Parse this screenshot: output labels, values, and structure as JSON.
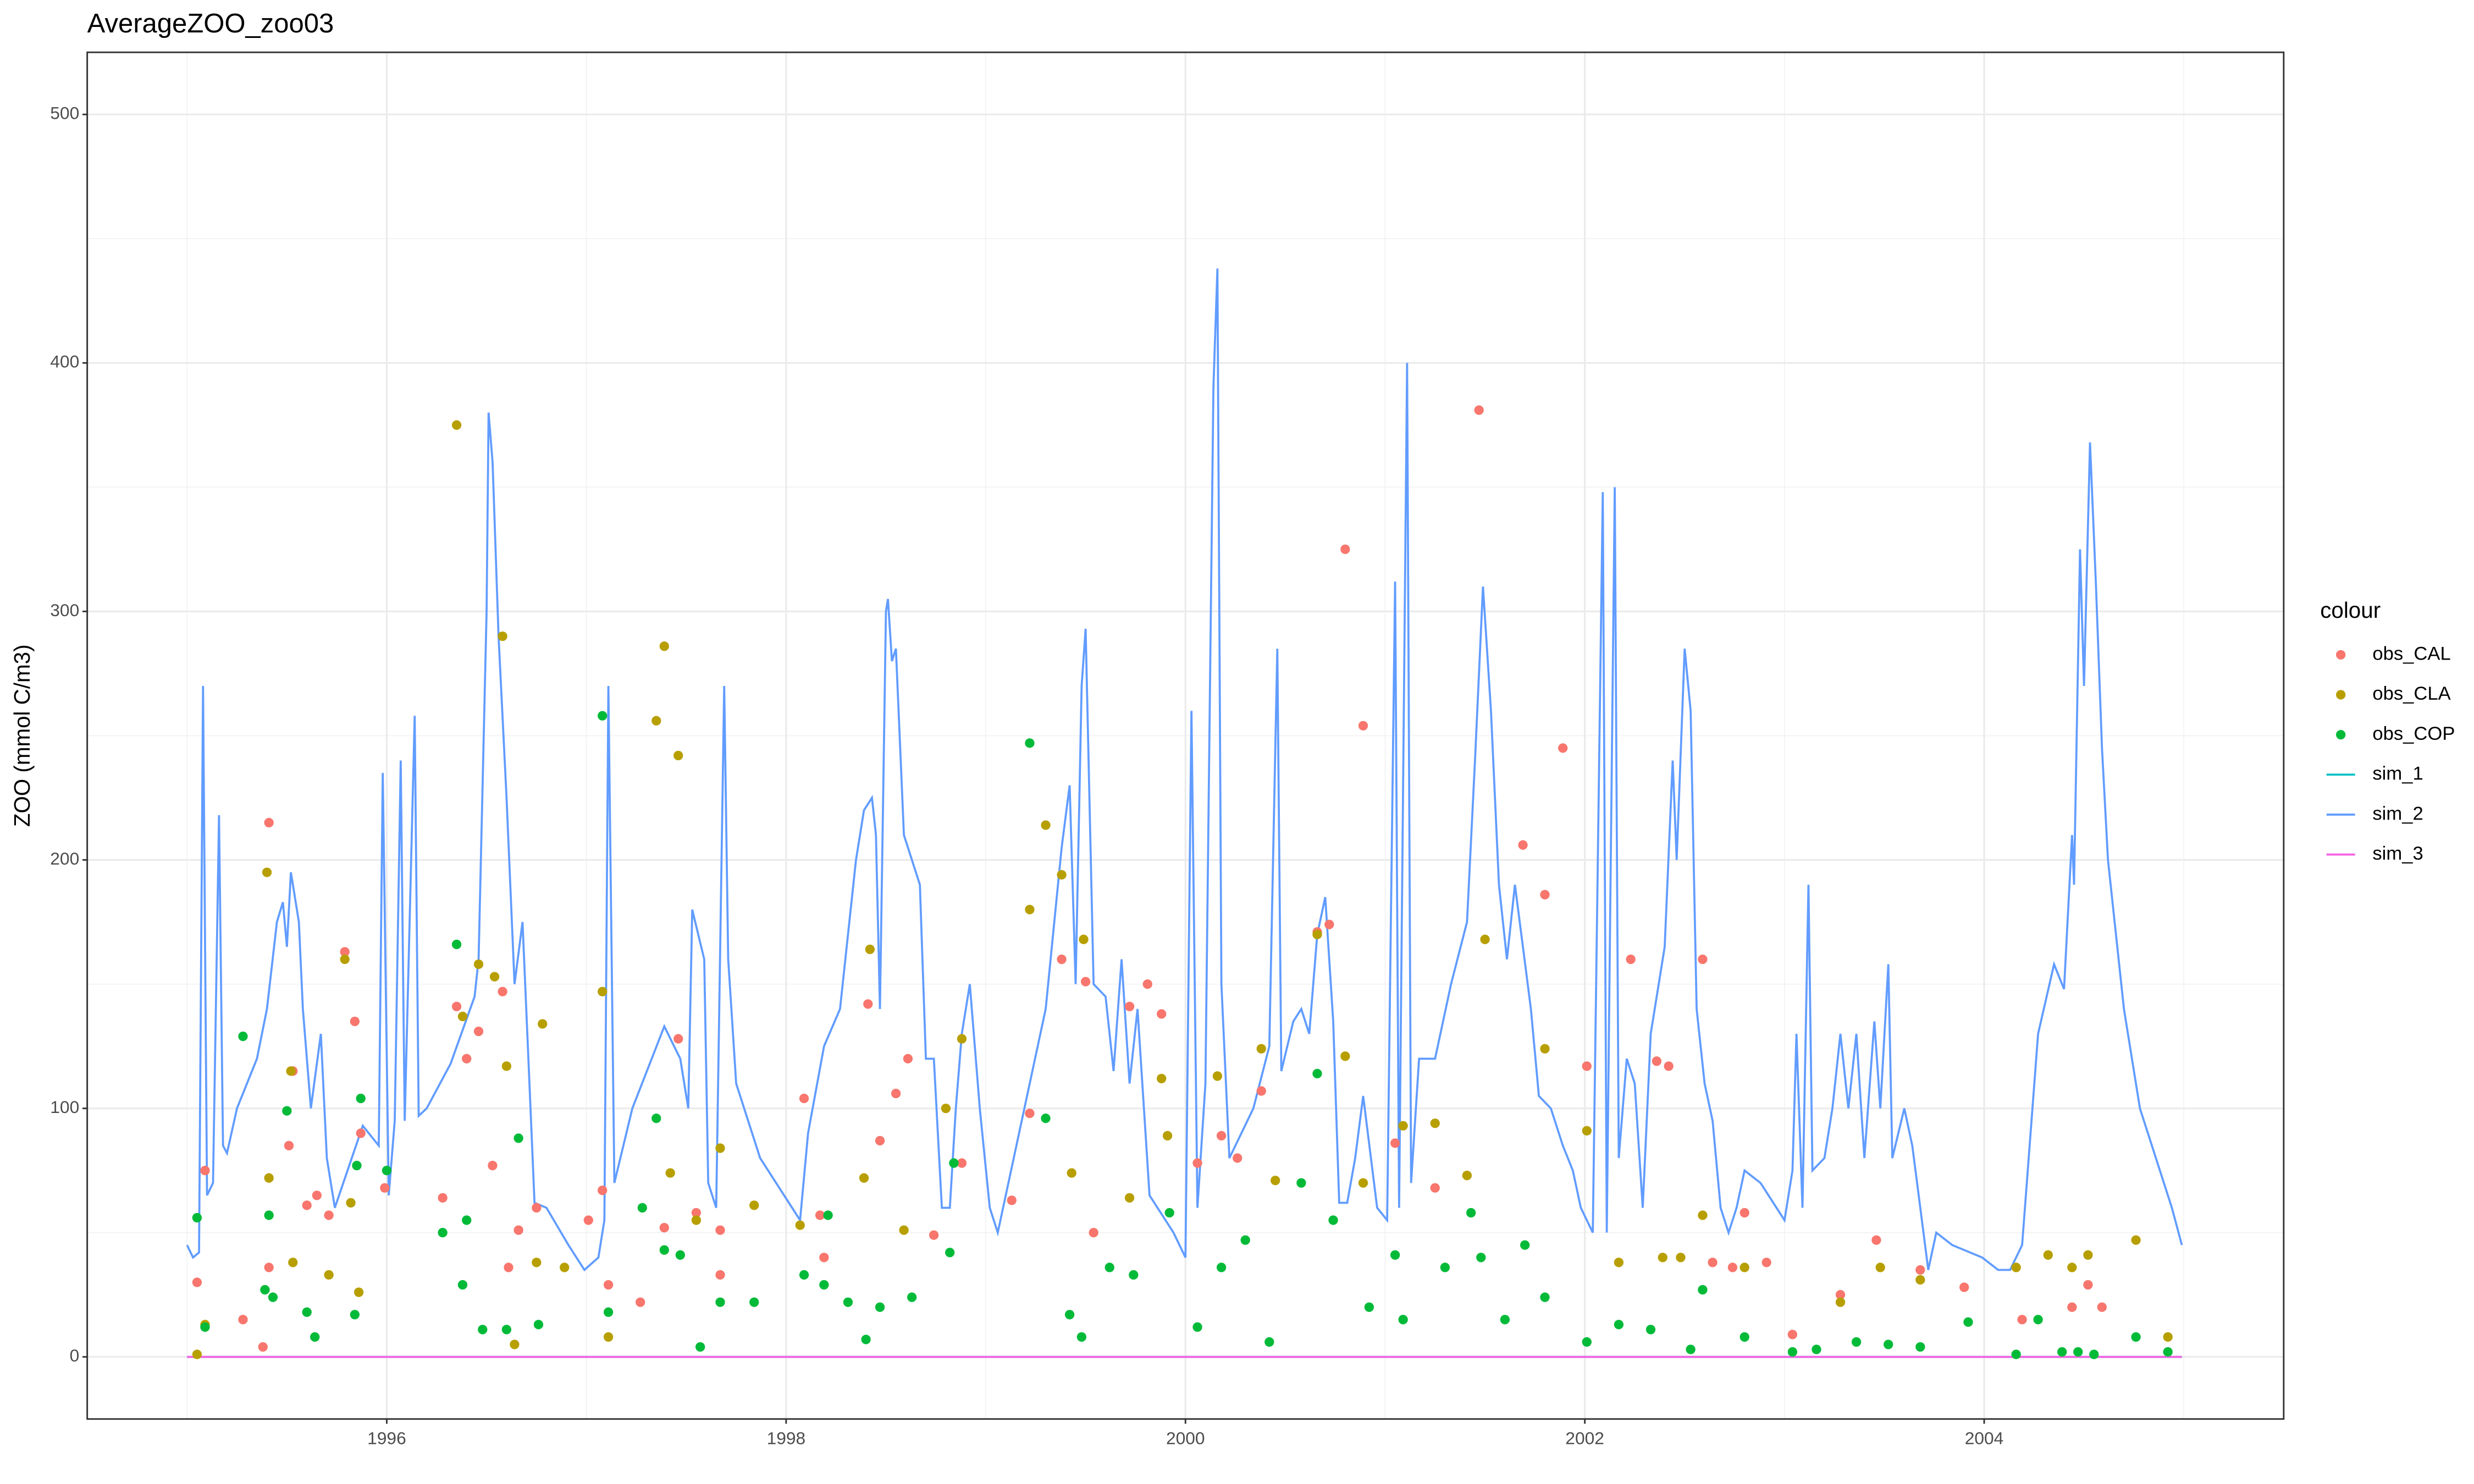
{
  "chart_data": {
    "type": "line",
    "title": "AverageZOO_zoo03",
    "y_label": "ZOO (mmol C/m3)",
    "legend_title": "colour",
    "legend_position": "right",
    "grid": true,
    "xlim": [
      1994.5,
      2005.5
    ],
    "xticks": [
      1996,
      1998,
      2000,
      2002,
      2004
    ],
    "ylim": [
      -25,
      525
    ],
    "yticks": [
      0,
      100,
      200,
      300,
      400,
      500
    ],
    "series": [
      {
        "name": "obs_CAL",
        "color": "#F8766D",
        "style": "point",
        "x": [
          1995.05,
          1995.09,
          1995.28,
          1995.38,
          1995.41,
          1995.41,
          1995.51,
          1995.53,
          1995.6,
          1995.65,
          1995.71,
          1995.79,
          1995.84,
          1995.87,
          1995.99,
          1996.28,
          1996.35,
          1996.4,
          1996.46,
          1996.53,
          1996.58,
          1996.61,
          1996.66,
          1996.75,
          1997.01,
          1997.08,
          1997.11,
          1997.27,
          1997.39,
          1997.46,
          1997.55,
          1997.67,
          1997.67,
          1998.09,
          1998.17,
          1998.19,
          1998.41,
          1998.47,
          1998.55,
          1998.61,
          1998.74,
          1998.88,
          1999.13,
          1999.22,
          1999.38,
          1999.5,
          1999.54,
          1999.72,
          1999.81,
          1999.88,
          2000.06,
          2000.18,
          2000.26,
          2000.38,
          2000.66,
          2000.72,
          2000.8,
          2000.89,
          2001.05,
          2001.25,
          2001.47,
          2001.69,
          2001.8,
          2001.89,
          2002.01,
          2002.23,
          2002.36,
          2002.42,
          2002.59,
          2002.64,
          2002.74,
          2002.8,
          2002.91,
          2003.04,
          2003.28,
          2003.46,
          2003.68,
          2003.9,
          2004.19,
          2004.44,
          2004.52,
          2004.59
        ],
        "values": [
          30,
          75,
          15,
          4,
          215,
          36,
          85,
          115,
          61,
          65,
          57,
          163,
          135,
          90,
          68,
          64,
          141,
          120,
          131,
          77,
          147,
          36,
          51,
          60,
          55,
          67,
          29,
          22,
          52,
          128,
          58,
          51,
          33,
          104,
          57,
          40,
          142,
          87,
          106,
          120,
          49,
          78,
          63,
          98,
          160,
          151,
          50,
          141,
          150,
          138,
          78,
          89,
          80,
          107,
          171,
          174,
          325,
          254,
          86,
          68,
          381,
          206,
          186,
          245,
          117,
          160,
          119,
          117,
          160,
          38,
          36,
          58,
          38,
          9,
          25,
          47,
          35,
          28,
          15,
          20,
          29,
          20
        ]
      },
      {
        "name": "obs_CLA",
        "color": "#B79F00",
        "style": "point",
        "x": [
          1995.05,
          1995.09,
          1995.4,
          1995.41,
          1995.52,
          1995.53,
          1995.71,
          1995.79,
          1995.82,
          1995.86,
          1996.35,
          1996.38,
          1996.46,
          1996.54,
          1996.58,
          1996.6,
          1996.64,
          1996.78,
          1996.75,
          1996.89,
          1997.08,
          1997.11,
          1997.35,
          1997.39,
          1997.46,
          1997.42,
          1997.55,
          1997.67,
          1997.84,
          1998.07,
          1998.39,
          1998.42,
          1998.59,
          1998.8,
          1998.88,
          1999.22,
          1999.3,
          1999.38,
          1999.43,
          1999.49,
          1999.72,
          1999.88,
          1999.91,
          2000.16,
          2000.38,
          2000.45,
          2000.66,
          2000.8,
          2000.89,
          2001.09,
          2001.25,
          2001.41,
          2001.5,
          2001.8,
          2002.01,
          2002.17,
          2002.39,
          2002.48,
          2002.59,
          2002.8,
          2003.28,
          2003.48,
          2003.68,
          2004.16,
          2004.32,
          2004.44,
          2004.52,
          2004.76,
          2004.92
        ],
        "values": [
          1,
          13,
          195,
          72,
          115,
          38,
          33,
          160,
          62,
          26,
          375,
          137,
          158,
          153,
          290,
          117,
          5,
          134,
          38,
          36,
          147,
          8,
          256,
          286,
          242,
          74,
          55,
          84,
          61,
          53,
          72,
          164,
          51,
          100,
          128,
          180,
          214,
          194,
          74,
          168,
          64,
          112,
          89,
          113,
          124,
          71,
          170,
          121,
          70,
          93,
          94,
          73,
          168,
          124,
          91,
          38,
          40,
          40,
          57,
          36,
          22,
          36,
          31,
          36,
          41,
          36,
          41,
          47,
          8
        ]
      },
      {
        "name": "obs_COP",
        "color": "#00BA38",
        "style": "point",
        "x": [
          1995.05,
          1995.09,
          1995.28,
          1995.39,
          1995.41,
          1995.43,
          1995.5,
          1995.6,
          1995.64,
          1995.84,
          1995.87,
          1995.85,
          1996.0,
          1996.28,
          1996.35,
          1996.4,
          1996.38,
          1996.48,
          1996.6,
          1996.66,
          1996.76,
          1997.08,
          1997.11,
          1997.28,
          1997.35,
          1997.39,
          1997.47,
          1997.57,
          1997.67,
          1997.84,
          1998.09,
          1998.19,
          1998.21,
          1998.31,
          1998.4,
          1998.47,
          1998.63,
          1998.82,
          1998.84,
          1999.22,
          1999.3,
          1999.42,
          1999.48,
          1999.62,
          1999.74,
          1999.92,
          2000.06,
          2000.18,
          2000.3,
          2000.42,
          2000.58,
          2000.66,
          2000.74,
          2000.92,
          2001.05,
          2001.09,
          2001.3,
          2001.43,
          2001.48,
          2001.6,
          2001.7,
          2001.8,
          2002.01,
          2002.17,
          2002.33,
          2002.53,
          2002.59,
          2002.8,
          2003.04,
          2003.16,
          2003.36,
          2003.52,
          2003.68,
          2003.92,
          2004.16,
          2004.27,
          2004.39,
          2004.47,
          2004.55,
          2004.76,
          2004.92
        ],
        "values": [
          56,
          12,
          129,
          27,
          57,
          24,
          99,
          18,
          8,
          17,
          104,
          77,
          75,
          50,
          166,
          55,
          29,
          11,
          11,
          88,
          13,
          258,
          18,
          60,
          96,
          43,
          41,
          4,
          22,
          22,
          33,
          29,
          57,
          22,
          7,
          20,
          24,
          42,
          78,
          247,
          96,
          17,
          8,
          36,
          33,
          58,
          12,
          36,
          47,
          6,
          70,
          114,
          55,
          20,
          41,
          15,
          36,
          58,
          40,
          15,
          45,
          24,
          6,
          13,
          11,
          3,
          27,
          8,
          2,
          3,
          6,
          5,
          4,
          14,
          1,
          15,
          2,
          2,
          1,
          8,
          2
        ]
      },
      {
        "name": "sim_1",
        "color": "#00BFC4",
        "style": "line",
        "x": [
          1995.0,
          2004.99
        ],
        "values": [
          0,
          0
        ]
      },
      {
        "name": "sim_2",
        "color": "#619CFF",
        "style": "line",
        "x": [
          1995.0,
          1995.03,
          1995.06,
          1995.08,
          1995.1,
          1995.13,
          1995.16,
          1995.18,
          1995.2,
          1995.25,
          1995.35,
          1995.4,
          1995.45,
          1995.48,
          1995.5,
          1995.52,
          1995.56,
          1995.58,
          1995.62,
          1995.67,
          1995.7,
          1995.74,
          1995.88,
          1995.96,
          1995.98,
          1996.01,
          1996.04,
          1996.07,
          1996.09,
          1996.14,
          1996.16,
          1996.2,
          1996.32,
          1996.44,
          1996.46,
          1996.5,
          1996.51,
          1996.53,
          1996.56,
          1996.6,
          1996.64,
          1996.68,
          1996.72,
          1996.74,
          1996.8,
          1996.91,
          1996.99,
          1997.06,
          1997.09,
          1997.11,
          1997.14,
          1997.23,
          1997.39,
          1997.47,
          1997.51,
          1997.53,
          1997.56,
          1997.59,
          1997.61,
          1997.65,
          1997.69,
          1997.71,
          1997.75,
          1997.87,
          1998.03,
          1998.07,
          1998.11,
          1998.19,
          1998.27,
          1998.35,
          1998.39,
          1998.43,
          1998.45,
          1998.47,
          1998.5,
          1998.51,
          1998.53,
          1998.55,
          1998.59,
          1998.67,
          1998.7,
          1998.74,
          1998.78,
          1998.82,
          1998.85,
          1998.88,
          1998.92,
          1998.97,
          1999.02,
          1999.06,
          1999.14,
          1999.3,
          1999.38,
          1999.42,
          1999.45,
          1999.48,
          1999.5,
          1999.54,
          1999.6,
          1999.64,
          1999.68,
          1999.72,
          1999.76,
          1999.82,
          1999.94,
          2000.0,
          2000.03,
          2000.06,
          2000.1,
          2000.14,
          2000.16,
          2000.18,
          2000.22,
          2000.34,
          2000.42,
          2000.46,
          2000.48,
          2000.54,
          2000.58,
          2000.62,
          2000.66,
          2000.7,
          2000.74,
          2000.77,
          2000.81,
          2000.85,
          2000.89,
          2000.96,
          2001.01,
          2001.05,
          2001.07,
          2001.11,
          2001.13,
          2001.17,
          2001.25,
          2001.33,
          2001.41,
          2001.45,
          2001.49,
          2001.53,
          2001.57,
          2001.61,
          2001.65,
          2001.69,
          2001.73,
          2001.77,
          2001.83,
          2001.89,
          2001.94,
          2001.98,
          2002.04,
          2002.09,
          2002.11,
          2002.15,
          2002.17,
          2002.21,
          2002.25,
          2002.29,
          2002.33,
          2002.4,
          2002.44,
          2002.46,
          2002.5,
          2002.53,
          2002.56,
          2002.6,
          2002.64,
          2002.68,
          2002.72,
          2002.76,
          2002.8,
          2002.88,
          2002.96,
          2003.0,
          2003.04,
          2003.06,
          2003.09,
          2003.12,
          2003.14,
          2003.2,
          2003.24,
          2003.28,
          2003.32,
          2003.36,
          2003.4,
          2003.45,
          2003.48,
          2003.52,
          2003.54,
          2003.6,
          2003.64,
          2003.68,
          2003.72,
          2003.76,
          2003.84,
          2003.99,
          2004.07,
          2004.13,
          2004.19,
          2004.27,
          2004.35,
          2004.4,
          2004.44,
          2004.45,
          2004.48,
          2004.5,
          2004.53,
          2004.56,
          2004.59,
          2004.62,
          2004.7,
          2004.78,
          2004.86,
          2004.94,
          2004.99
        ],
        "values": [
          45,
          40,
          42,
          270,
          65,
          70,
          218,
          85,
          82,
          100,
          120,
          140,
          175,
          183,
          165,
          195,
          175,
          140,
          100,
          130,
          80,
          60,
          93,
          85,
          235,
          65,
          95,
          240,
          95,
          258,
          97,
          100,
          118,
          145,
          160,
          300,
          380,
          360,
          290,
          225,
          150,
          175,
          100,
          62,
          60,
          45,
          35,
          40,
          55,
          270,
          70,
          100,
          133,
          120,
          100,
          180,
          170,
          160,
          70,
          60,
          270,
          160,
          110,
          80,
          60,
          55,
          90,
          125,
          140,
          200,
          220,
          225,
          210,
          140,
          300,
          305,
          280,
          285,
          210,
          190,
          120,
          120,
          60,
          60,
          100,
          130,
          150,
          100,
          60,
          50,
          80,
          140,
          205,
          230,
          150,
          270,
          293,
          150,
          145,
          115,
          160,
          110,
          140,
          65,
          50,
          40,
          260,
          60,
          110,
          390,
          438,
          150,
          80,
          100,
          125,
          285,
          115,
          135,
          140,
          130,
          170,
          185,
          135,
          62,
          62,
          80,
          105,
          60,
          55,
          312,
          60,
          400,
          70,
          120,
          120,
          150,
          175,
          240,
          310,
          260,
          190,
          160,
          190,
          165,
          140,
          105,
          100,
          85,
          75,
          60,
          50,
          348,
          50,
          350,
          80,
          120,
          110,
          60,
          130,
          165,
          240,
          200,
          285,
          260,
          140,
          110,
          95,
          60,
          50,
          60,
          75,
          70,
          60,
          55,
          75,
          130,
          60,
          190,
          75,
          80,
          100,
          130,
          100,
          130,
          80,
          135,
          100,
          158,
          80,
          100,
          85,
          60,
          35,
          50,
          45,
          40,
          35,
          35,
          45,
          130,
          158,
          148,
          210,
          190,
          325,
          270,
          368,
          310,
          245,
          200,
          140,
          100,
          80,
          60,
          45
        ]
      },
      {
        "name": "sim_3",
        "color": "#F564E3",
        "style": "line",
        "x": [
          1995.0,
          2004.99
        ],
        "values": [
          0,
          0
        ]
      }
    ]
  }
}
